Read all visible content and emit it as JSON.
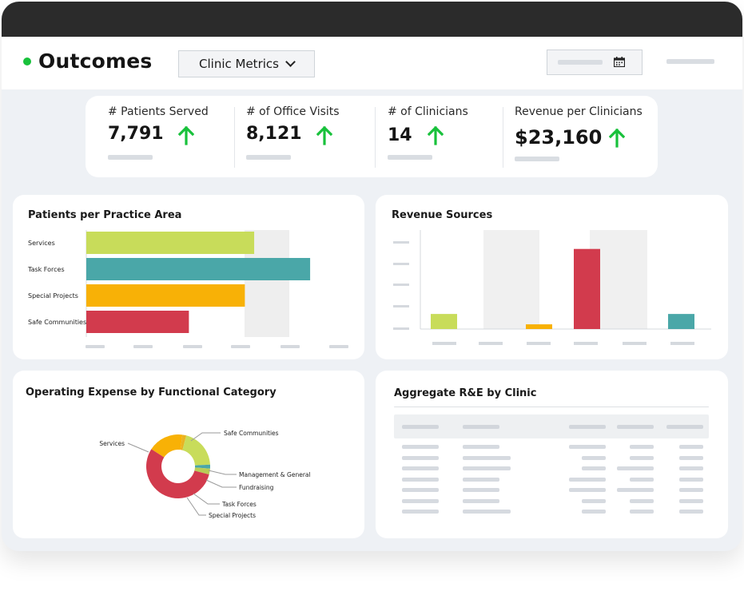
{
  "header": {
    "title": "Outcomes",
    "dropdown_label": "Clinic Metrics"
  },
  "metrics": [
    {
      "label": "# Patients Served",
      "value": "7,791",
      "trend": "up"
    },
    {
      "label": "# of Office Visits",
      "value": "8,121",
      "trend": "up"
    },
    {
      "label": "# of Clinicians",
      "value": "14",
      "trend": "up"
    },
    {
      "label": "Revenue per Clinicians",
      "value": "$23,160",
      "trend": "up"
    }
  ],
  "colors": {
    "lime": "#c8dc5a",
    "teal": "#4aa7a8",
    "orange": "#f8b106",
    "red": "#d23b4d",
    "accent_green": "#18c13b"
  },
  "cards": {
    "practice_area_title": "Patients per Practice Area",
    "revenue_title": "Revenue Sources",
    "expense_title": "Operating Expense by Functional Category",
    "aggregate_title": "Aggregate R&E by Clinic"
  },
  "chart_data": [
    {
      "type": "bar",
      "orientation": "horizontal",
      "title": "Patients per Practice Area",
      "categories": [
        "Services",
        "Task Forces",
        "Special Projects",
        "Safe Communities"
      ],
      "values": [
        0.54,
        0.72,
        0.51,
        0.33
      ],
      "colors": [
        "#c8dc5a",
        "#4aa7a8",
        "#f8b106",
        "#d23b4d"
      ]
    },
    {
      "type": "bar",
      "title": "Revenue Sources",
      "values": [
        0.16,
        0,
        0.05,
        0.85,
        0,
        0.16
      ],
      "colors": [
        "#c8dc5a",
        "#c8dc5a",
        "#f8b106",
        "#d23b4d",
        "#d23b4d",
        "#4aa7a8"
      ]
    },
    {
      "type": "pie",
      "title": "Operating Expense by Functional Category",
      "labels": [
        "Safe Communities",
        "Management & General",
        "Fundraising",
        "Task Forces",
        "Special Projects",
        "Services"
      ],
      "values": [
        18,
        2,
        20,
        2,
        3,
        55
      ],
      "colors": [
        "#f8b106",
        "#e9b322",
        "#c8dc5a",
        "#4aa7a8",
        "#b8cd56",
        "#d23b4d"
      ]
    }
  ]
}
